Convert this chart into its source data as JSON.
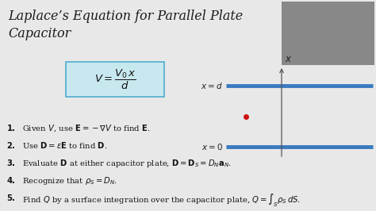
{
  "bg_color": "#e8e8e8",
  "title_line1": "Laplace’s Equation for Parallel Plate",
  "title_line2": "Capacitor",
  "title_fontsize": 11.5,
  "formula_box_color": "#c8e8f0",
  "formula_box_edge": "#5ab0d0",
  "plate_color": "#3a7abf",
  "plate_lw": 3.5,
  "axis_color": "#555555",
  "dot_color": "#cc1111",
  "items": [
    "Given $V$, use $\\mathbf{E} = -\\nabla V$ to find $\\mathbf{E}$.",
    "Use $\\mathbf{D} = \\epsilon\\mathbf{E}$ to find $\\mathbf{D}$.",
    "Evaluate $\\mathbf{D}$ at either capacitor plate, $\\mathbf{D} = \\mathbf{D}_S = D_N\\mathbf{a}_N$.",
    "Recognize that $\\rho_S = D_N$.",
    "Find $Q$ by a surface integration over the capacitor plate, $Q = \\int_S \\rho_S \\, dS$."
  ],
  "item_fontsize": 7.2,
  "inset_color": "#888888"
}
